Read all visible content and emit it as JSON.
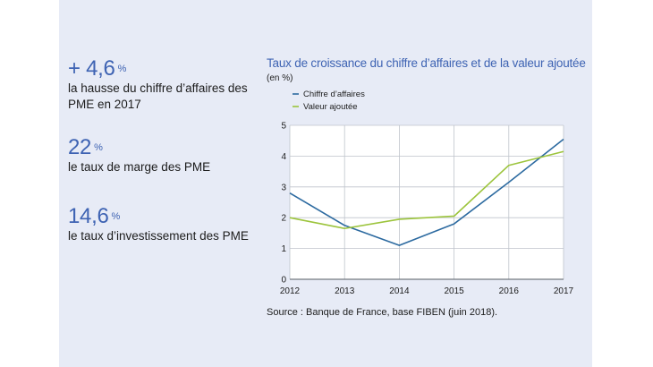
{
  "kpis": [
    {
      "value": "+ 4,6",
      "unit": "%",
      "label": "la hausse du chiffre d’affaires des PME en 2017"
    },
    {
      "value": "22",
      "unit": "%",
      "label": "le taux de marge des PME"
    },
    {
      "value": "14,6",
      "unit": "%",
      "label": "le taux d’investissement des PME"
    }
  ],
  "source": "Source : Banque de France, base FIBEN (juin 2018).",
  "colors": {
    "accent": "#3e63b3",
    "series1": "#2c6aa0",
    "series2": "#9cc43c",
    "panel": "#e7ebf6"
  },
  "chart_data": {
    "type": "line",
    "title": "Taux de croissance du chiffre d’affaires et de la valeur ajoutée",
    "unit_label": "(en %)",
    "x": [
      "2012",
      "2013",
      "2014",
      "2015",
      "2016",
      "2017"
    ],
    "ylim": [
      0,
      5
    ],
    "yticks": [
      "0",
      "1",
      "2",
      "3",
      "4",
      "5"
    ],
    "grid": true,
    "legend_position": "top-left",
    "series": [
      {
        "name": "Chiffre d’affaires",
        "color": "#2c6aa0",
        "values": [
          2.8,
          1.75,
          1.1,
          1.8,
          3.15,
          4.55
        ]
      },
      {
        "name": "Valeur ajoutée",
        "color": "#9cc43c",
        "values": [
          2.0,
          1.65,
          1.95,
          2.05,
          3.7,
          4.15
        ]
      }
    ]
  }
}
